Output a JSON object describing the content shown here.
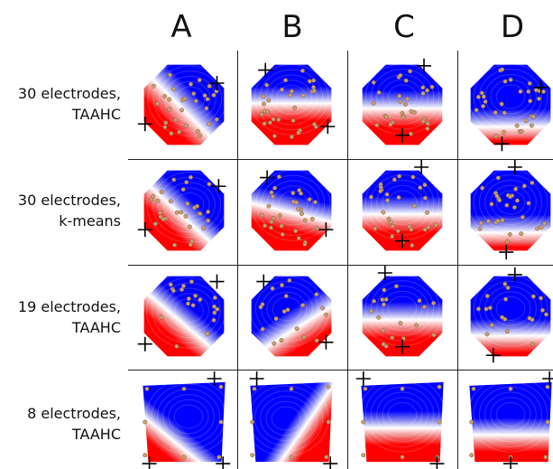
{
  "columns": [
    "A",
    "B",
    "C",
    "D"
  ],
  "rows": [
    {
      "line1": "30 electrodes,",
      "line2": "TAAHC"
    },
    {
      "line1": "30 electrodes,",
      "line2": "k-means"
    },
    {
      "line1": "19 electrodes,",
      "line2": "TAAHC"
    },
    {
      "line1": "8 electrodes,",
      "line2": "TAAHC"
    }
  ],
  "colors": {
    "positive": "#ff0000",
    "neutral": "#ffffff",
    "negative": "#0000ff",
    "electrode": "#c8a070",
    "marker": "#000000"
  }
}
